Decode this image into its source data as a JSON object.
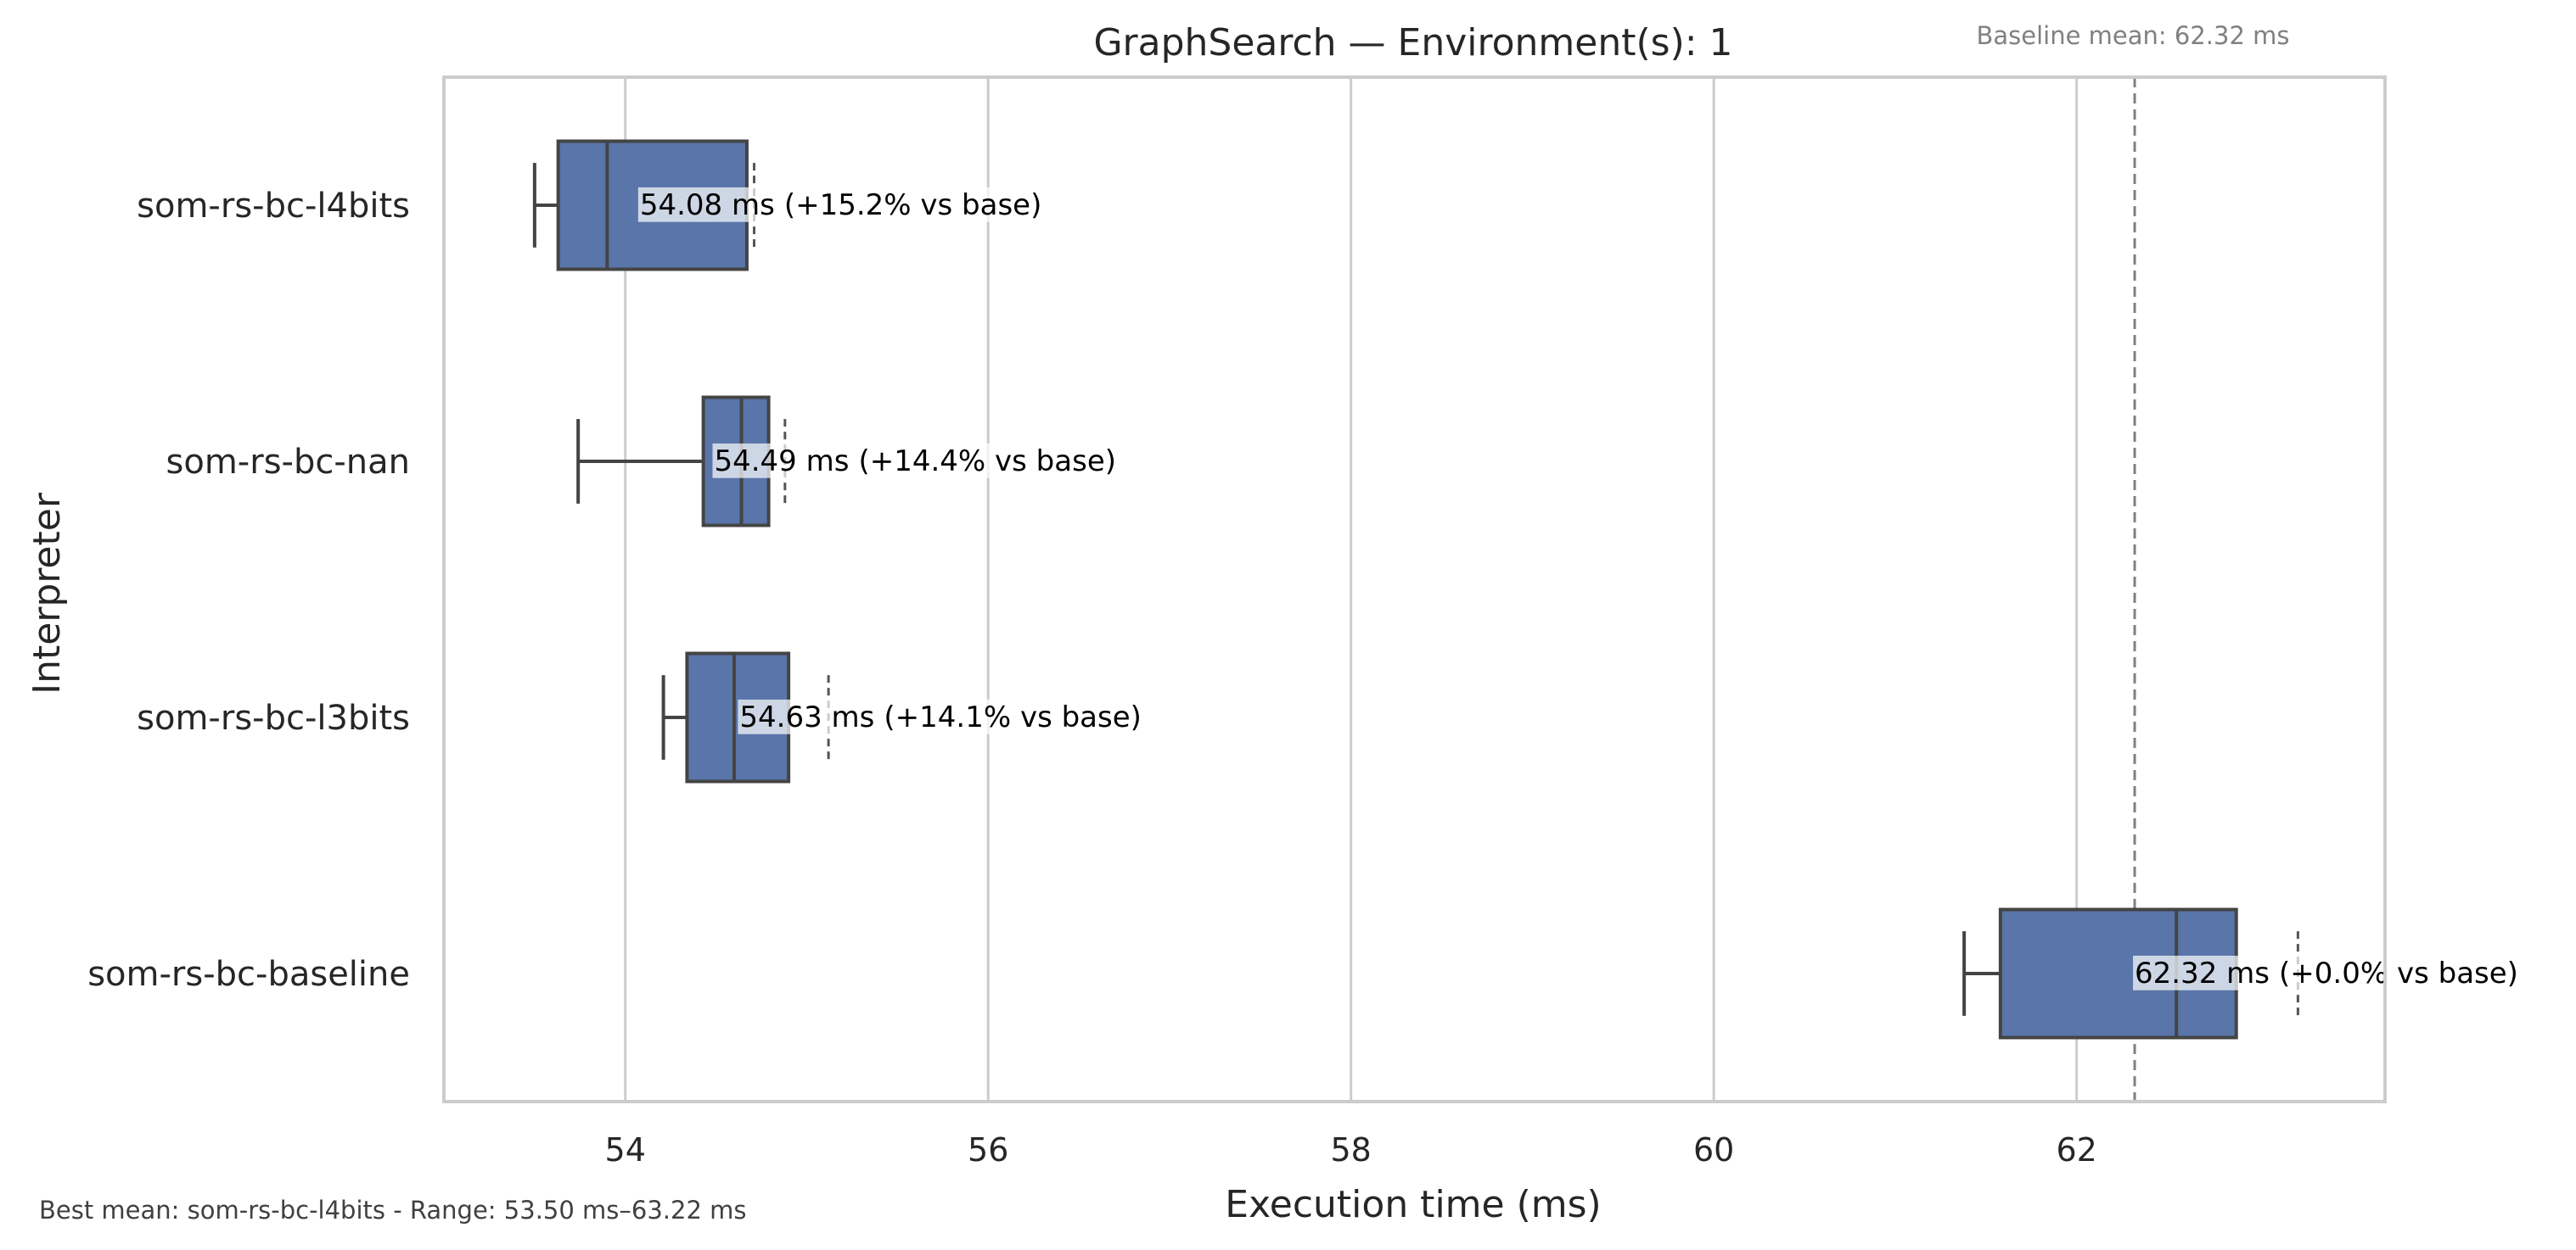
{
  "chart_data": {
    "type": "boxplot",
    "orientation": "horizontal",
    "title": "GraphSearch — Environment(s): 1",
    "xlabel": "Execution time (ms)",
    "ylabel": "Interpreter",
    "xlim": [
      53.0,
      63.7
    ],
    "xticks": [
      54,
      56,
      58,
      60,
      62
    ],
    "grid": "vertical",
    "box_color": "#5975a9",
    "edge_color": "#444444",
    "categories": [
      "som-rs-bc-l4bits",
      "som-rs-bc-nan",
      "som-rs-bc-l3bits",
      "som-rs-bc-baseline"
    ],
    "boxes": [
      {
        "name": "som-rs-bc-l4bits",
        "whisker_low": 53.5,
        "q1": 53.63,
        "median": 53.9,
        "q3": 54.67,
        "whisker_high": 54.67,
        "mean": 54.08,
        "mean_label": "54.08 ms",
        "delta_label": "(+15.2% vs base)"
      },
      {
        "name": "som-rs-bc-nan",
        "whisker_low": 53.74,
        "q1": 54.43,
        "median": 54.64,
        "q3": 54.79,
        "whisker_high": 54.79,
        "mean": 54.49,
        "mean_label": "54.49 ms",
        "delta_label": "(+14.4% vs base)"
      },
      {
        "name": "som-rs-bc-l3bits",
        "whisker_low": 54.21,
        "q1": 54.34,
        "median": 54.6,
        "q3": 54.9,
        "whisker_high": 54.9,
        "mean": 54.63,
        "mean_label": "54.63 ms",
        "delta_label": "(+14.1% vs base)"
      },
      {
        "name": "som-rs-bc-baseline",
        "whisker_low": 61.38,
        "q1": 61.58,
        "median": 62.55,
        "q3": 62.88,
        "whisker_high": 62.88,
        "mean": 62.32,
        "mean_label": "62.32 ms",
        "delta_label": "(+0.0% vs base)"
      }
    ],
    "max_markers": [
      54.71,
      54.88,
      55.12,
      63.22
    ],
    "baseline_mean": 62.32,
    "baseline_label": "Baseline mean: 62.32 ms",
    "footer": "Best mean: som-rs-bc-l4bits - Range: 53.50 ms–63.22 ms"
  }
}
